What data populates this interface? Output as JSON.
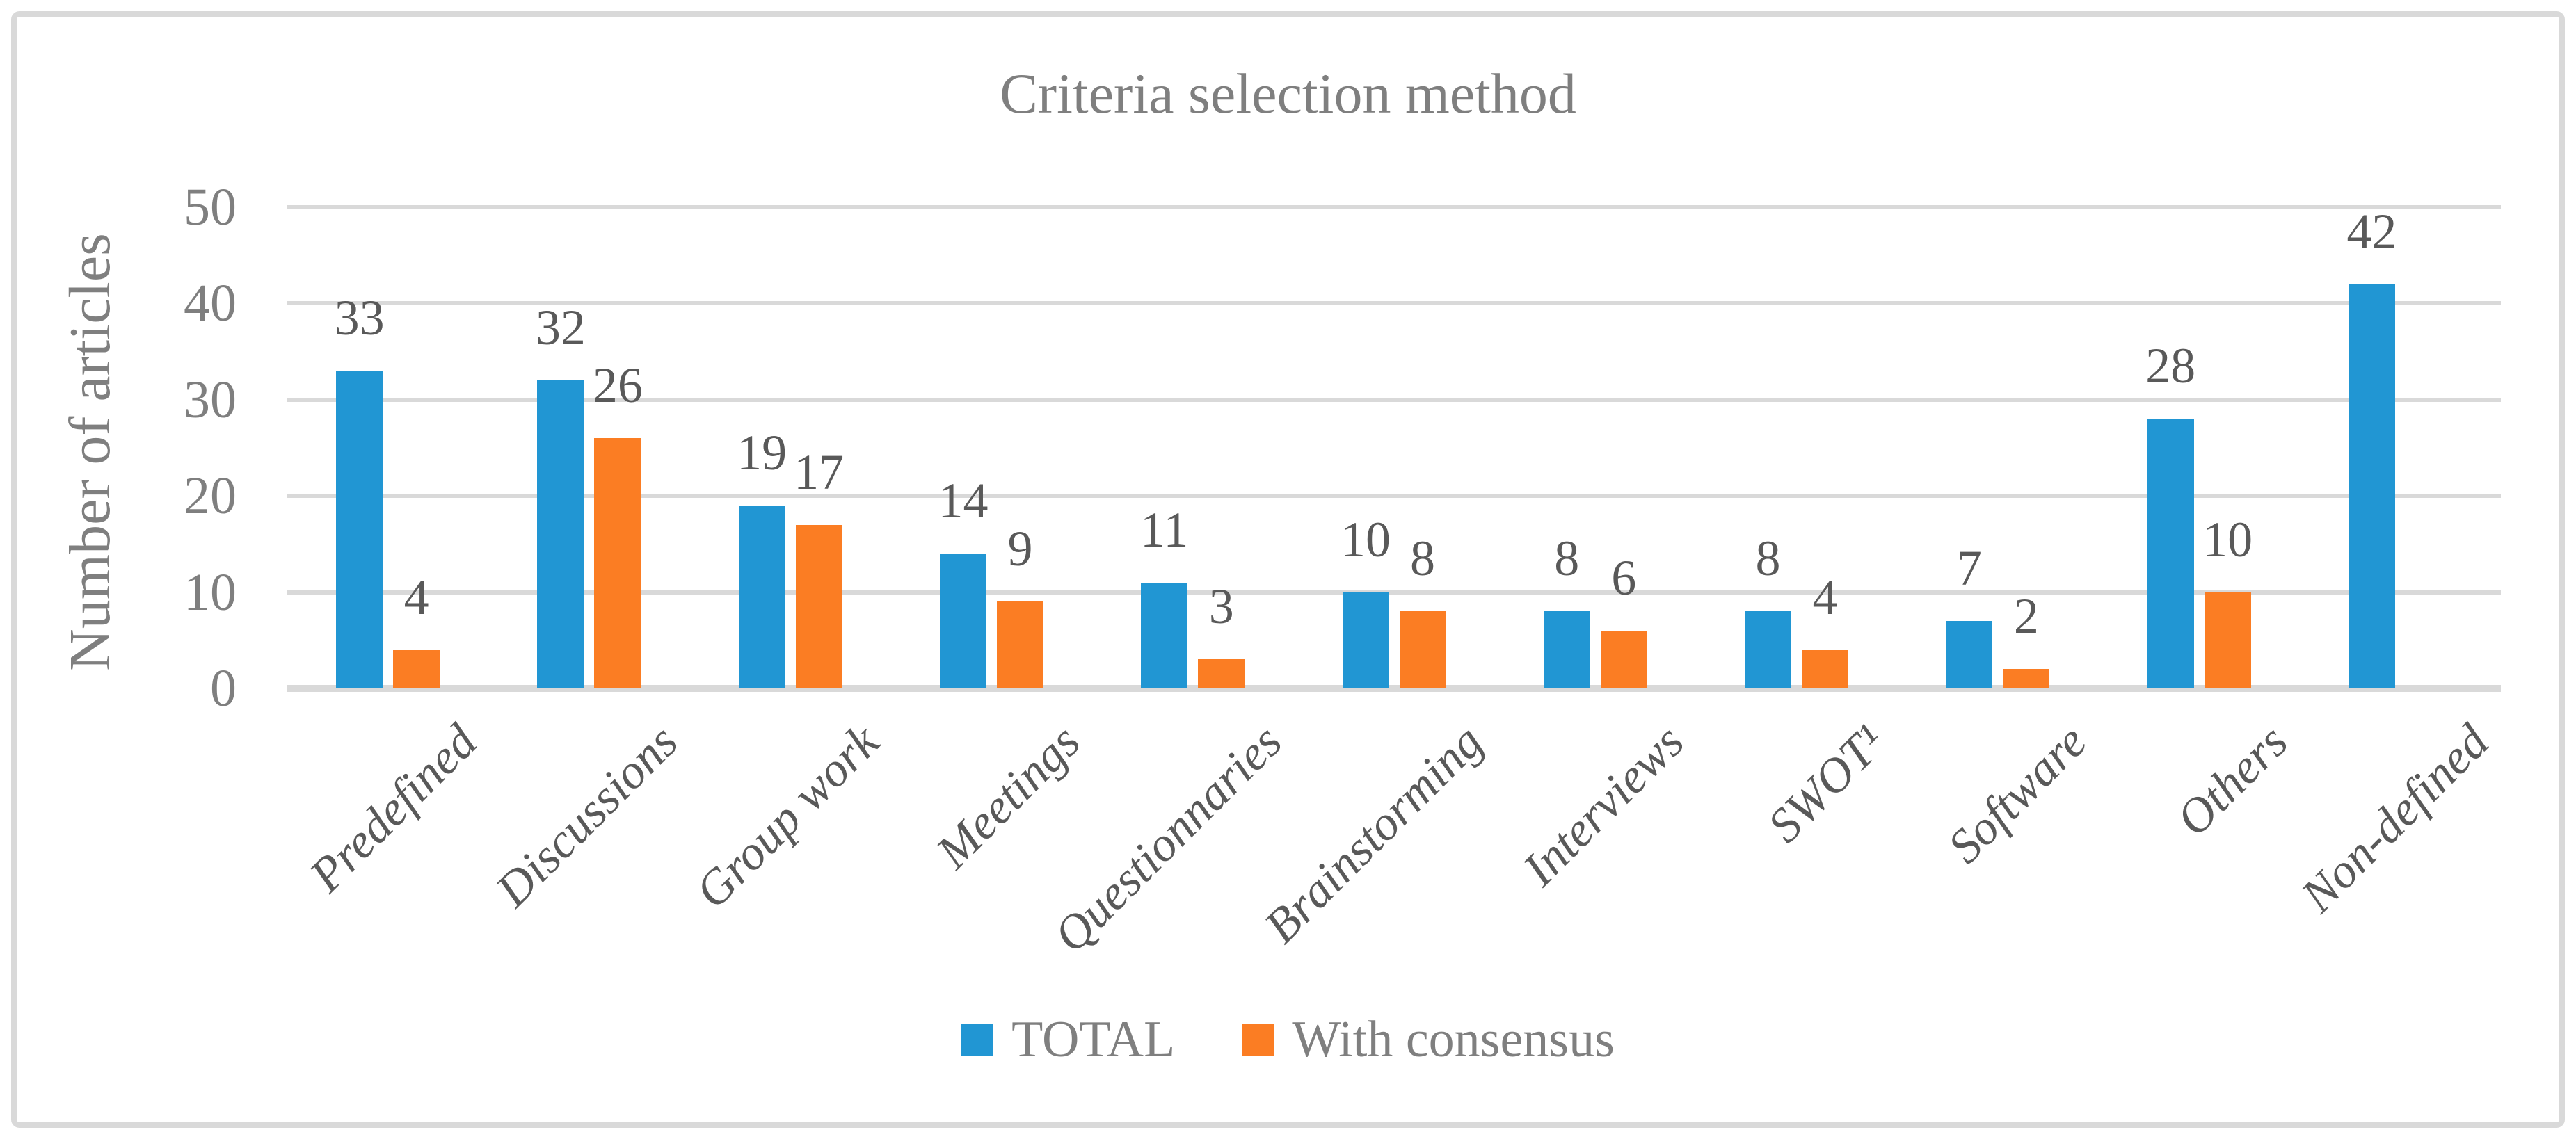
{
  "title": "Criteria selection method",
  "y_axis": {
    "label": "Number of articles",
    "ticks": [
      0,
      10,
      20,
      30,
      40,
      50
    ]
  },
  "legend": {
    "items": [
      "TOTAL",
      "With consensus"
    ]
  },
  "colors": {
    "total_bar": "#2196D3",
    "consensus_bar": "#FB7D23",
    "gridline": "#D9D9D9",
    "axis_text": "#7F7F7F",
    "label_text": "#595959",
    "border": "#D9D9D9"
  },
  "chart_data": {
    "type": "bar",
    "title": "Criteria selection method",
    "categories": [
      "Predefined",
      "Discussions",
      "Group work",
      "Meetings",
      "Questionnaries",
      "Brainstorming",
      "Interviews",
      "SWOT¹",
      "Software",
      "Others",
      "Non-defined"
    ],
    "series": [
      {
        "name": "TOTAL",
        "color": "#2196D3",
        "values": [
          33,
          32,
          19,
          14,
          11,
          10,
          8,
          8,
          7,
          28,
          42
        ]
      },
      {
        "name": "With consensus",
        "color": "#FB7D23",
        "values": [
          4,
          26,
          17,
          9,
          3,
          8,
          6,
          4,
          2,
          10,
          null
        ]
      }
    ],
    "xlabel": "",
    "ylabel": "Number of articles",
    "ylim": [
      0,
      50
    ],
    "ytick_step": 10,
    "grid": true,
    "data_labels": true,
    "legend_position": "bottom"
  }
}
